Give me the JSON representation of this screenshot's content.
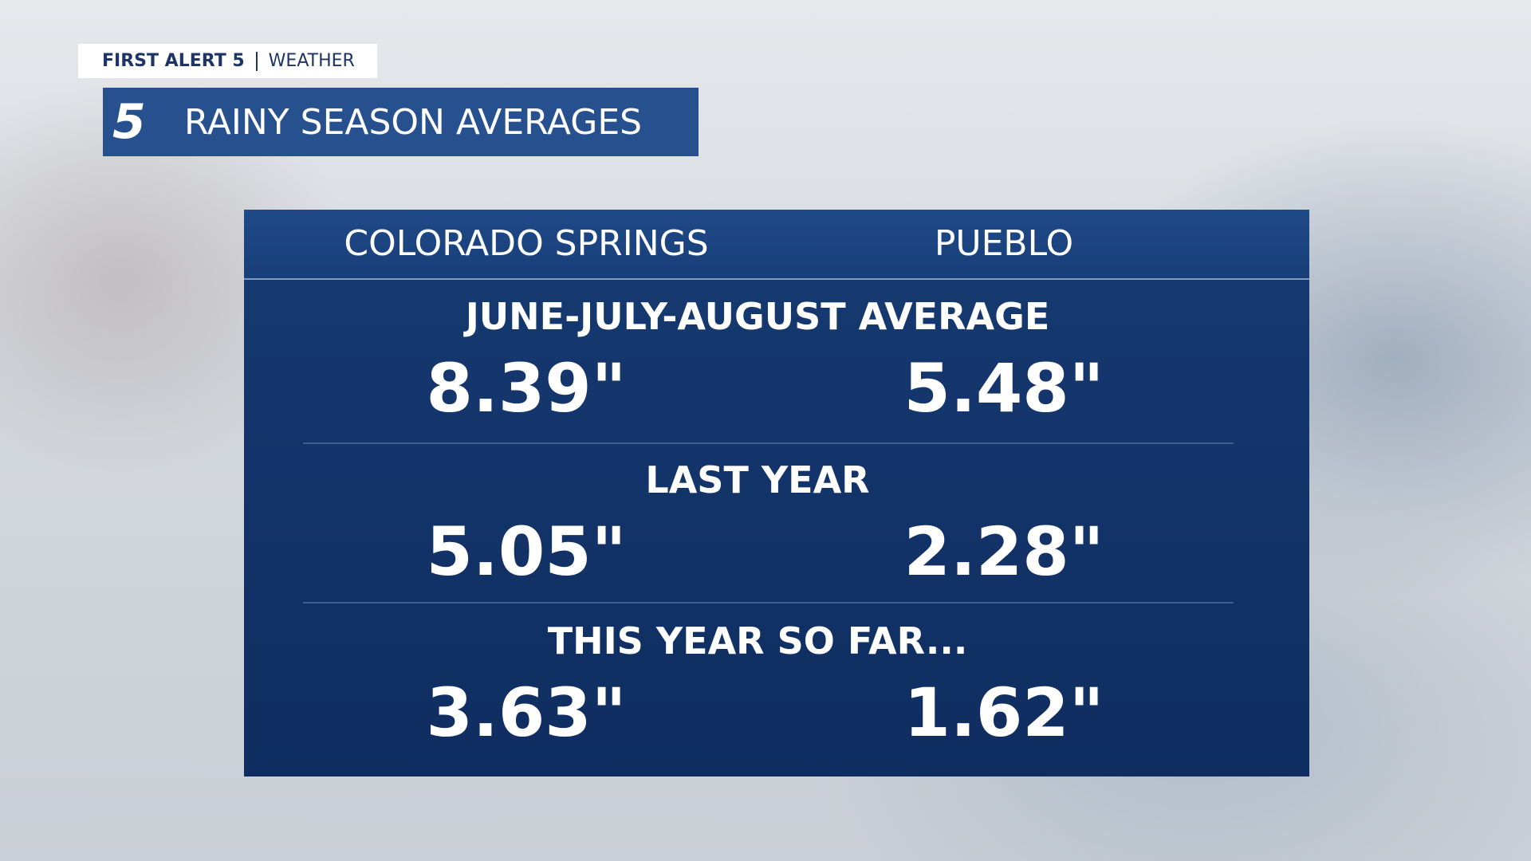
{
  "header": {
    "brand": "FIRST ALERT 5",
    "section": "WEATHER",
    "logo": "5",
    "title": "RAINY SEASON AVERAGES"
  },
  "table": {
    "columns": [
      "COLORADO SPRINGS",
      "PUEBLO"
    ],
    "sections": [
      {
        "label": "JUNE-JULY-AUGUST AVERAGE",
        "values": [
          "8.39\"",
          "5.48\""
        ]
      },
      {
        "label": "LAST YEAR",
        "values": [
          "5.05\"",
          "2.28\""
        ]
      },
      {
        "label": "THIS YEAR SO FAR...",
        "values": [
          "3.63\"",
          "1.62\""
        ]
      }
    ]
  }
}
